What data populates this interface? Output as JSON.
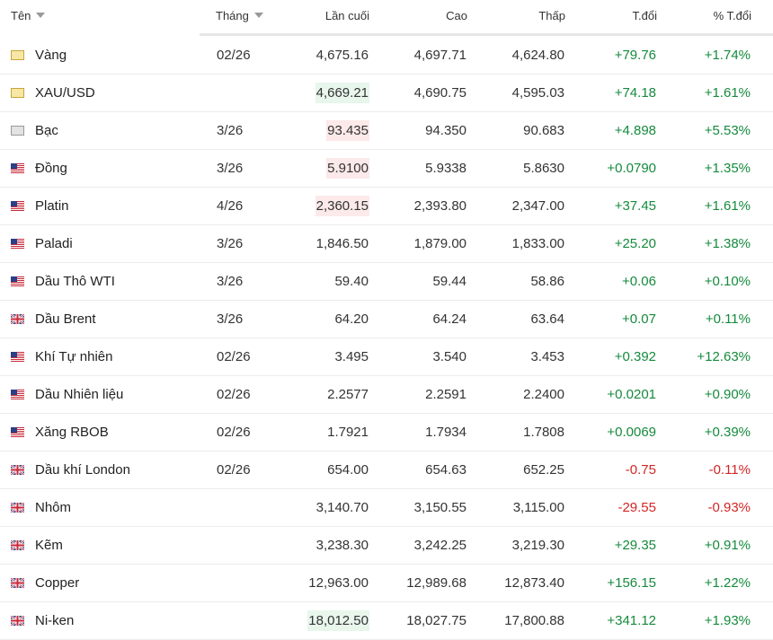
{
  "table": {
    "columns": [
      "Tên",
      "Tháng",
      "Lần cuối",
      "Cao",
      "Thấp",
      "T.đổi",
      "% T.đổi"
    ],
    "rows": [
      {
        "icon": "gold",
        "name": "Vàng",
        "month": "02/26",
        "last": "4,675.16",
        "high": "4,697.71",
        "low": "4,624.80",
        "change": "+79.76",
        "change_pct": "+1.74%",
        "highlight": null
      },
      {
        "icon": "gold",
        "name": "XAU/USD",
        "month": null,
        "last": "4,669.21",
        "high": "4,690.75",
        "low": "4,595.03",
        "change": "+74.18",
        "change_pct": "+1.61%",
        "highlight": "up"
      },
      {
        "icon": "silver",
        "name": "Bạc",
        "month": "3/26",
        "last": "93.435",
        "high": "94.350",
        "low": "90.683",
        "change": "+4.898",
        "change_pct": "+5.53%",
        "highlight": "down"
      },
      {
        "icon": "us",
        "name": "Đồng",
        "month": "3/26",
        "last": "5.9100",
        "high": "5.9338",
        "low": "5.8630",
        "change": "+0.0790",
        "change_pct": "+1.35%",
        "highlight": "down"
      },
      {
        "icon": "us",
        "name": "Platin",
        "month": "4/26",
        "last": "2,360.15",
        "high": "2,393.80",
        "low": "2,347.00",
        "change": "+37.45",
        "change_pct": "+1.61%",
        "highlight": "down"
      },
      {
        "icon": "us",
        "name": "Paladi",
        "month": "3/26",
        "last": "1,846.50",
        "high": "1,879.00",
        "low": "1,833.00",
        "change": "+25.20",
        "change_pct": "+1.38%",
        "highlight": null
      },
      {
        "icon": "us",
        "name": "Dầu Thô WTI",
        "month": "3/26",
        "last": "59.40",
        "high": "59.44",
        "low": "58.86",
        "change": "+0.06",
        "change_pct": "+0.10%",
        "highlight": null
      },
      {
        "icon": "uk",
        "name": "Dầu Brent",
        "month": "3/26",
        "last": "64.20",
        "high": "64.24",
        "low": "63.64",
        "change": "+0.07",
        "change_pct": "+0.11%",
        "highlight": null
      },
      {
        "icon": "us",
        "name": "Khí Tự nhiên",
        "month": "02/26",
        "last": "3.495",
        "high": "3.540",
        "low": "3.453",
        "change": "+0.392",
        "change_pct": "+12.63%",
        "highlight": null
      },
      {
        "icon": "us",
        "name": "Dầu Nhiên liệu",
        "month": "02/26",
        "last": "2.2577",
        "high": "2.2591",
        "low": "2.2400",
        "change": "+0.0201",
        "change_pct": "+0.90%",
        "highlight": null
      },
      {
        "icon": "us",
        "name": "Xăng RBOB",
        "month": "02/26",
        "last": "1.7921",
        "high": "1.7934",
        "low": "1.7808",
        "change": "+0.0069",
        "change_pct": "+0.39%",
        "highlight": null
      },
      {
        "icon": "uk",
        "name": "Dầu khí London",
        "month": "02/26",
        "last": "654.00",
        "high": "654.63",
        "low": "652.25",
        "change": "-0.75",
        "change_pct": "-0.11%",
        "highlight": null
      },
      {
        "icon": "uk",
        "name": "Nhôm",
        "month": null,
        "last": "3,140.70",
        "high": "3,150.55",
        "low": "3,115.00",
        "change": "-29.55",
        "change_pct": "-0.93%",
        "highlight": null
      },
      {
        "icon": "uk",
        "name": "Kẽm",
        "month": null,
        "last": "3,238.30",
        "high": "3,242.25",
        "low": "3,219.30",
        "change": "+29.35",
        "change_pct": "+0.91%",
        "highlight": null
      },
      {
        "icon": "uk",
        "name": "Copper",
        "month": null,
        "last": "12,963.00",
        "high": "12,989.68",
        "low": "12,873.40",
        "change": "+156.15",
        "change_pct": "+1.22%",
        "highlight": null
      },
      {
        "icon": "uk",
        "name": "Ni-ken",
        "month": null,
        "last": "18,012.50",
        "high": "18,027.75",
        "low": "17,800.88",
        "change": "+341.12",
        "change_pct": "+1.93%",
        "highlight": "up"
      }
    ]
  }
}
